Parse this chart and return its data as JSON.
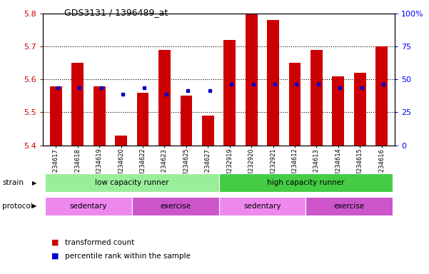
{
  "title": "GDS3131 / 1396489_at",
  "samples": [
    "GSM234617",
    "GSM234618",
    "GSM234619",
    "GSM234620",
    "GSM234622",
    "GSM234623",
    "GSM234625",
    "GSM234627",
    "GSM232919",
    "GSM232920",
    "GSM232921",
    "GSM234612",
    "GSM234613",
    "GSM234614",
    "GSM234615",
    "GSM234616"
  ],
  "bar_values": [
    5.58,
    5.65,
    5.58,
    5.43,
    5.56,
    5.69,
    5.55,
    5.49,
    5.72,
    5.8,
    5.78,
    5.65,
    5.69,
    5.61,
    5.62,
    5.7
  ],
  "percentile_values": [
    5.575,
    5.575,
    5.575,
    5.555,
    5.575,
    5.555,
    5.565,
    5.565,
    5.585,
    5.585,
    5.585,
    5.585,
    5.585,
    5.575,
    5.575,
    5.585
  ],
  "ymin": 5.4,
  "ymax": 5.8,
  "yticks": [
    5.4,
    5.5,
    5.6,
    5.7,
    5.8
  ],
  "right_yticks": [
    0,
    25,
    50,
    75,
    100
  ],
  "bar_color": "#cc0000",
  "percentile_color": "#0000cc",
  "strain_labels": [
    {
      "text": "low capacity runner",
      "start": 0,
      "end": 8,
      "color": "#99ee99"
    },
    {
      "text": "high capacity runner",
      "start": 8,
      "end": 16,
      "color": "#44cc44"
    }
  ],
  "protocol_labels": [
    {
      "text": "sedentary",
      "start": 0,
      "end": 4,
      "color": "#ee88ee"
    },
    {
      "text": "exercise",
      "start": 4,
      "end": 8,
      "color": "#cc55cc"
    },
    {
      "text": "sedentary",
      "start": 8,
      "end": 12,
      "color": "#ee88ee"
    },
    {
      "text": "exercise",
      "start": 12,
      "end": 16,
      "color": "#cc55cc"
    }
  ],
  "legend_items": [
    {
      "label": "transformed count",
      "color": "#cc0000"
    },
    {
      "label": "percentile rank within the sample",
      "color": "#0000cc"
    }
  ],
  "strain_label": "strain",
  "protocol_label": "protocol"
}
